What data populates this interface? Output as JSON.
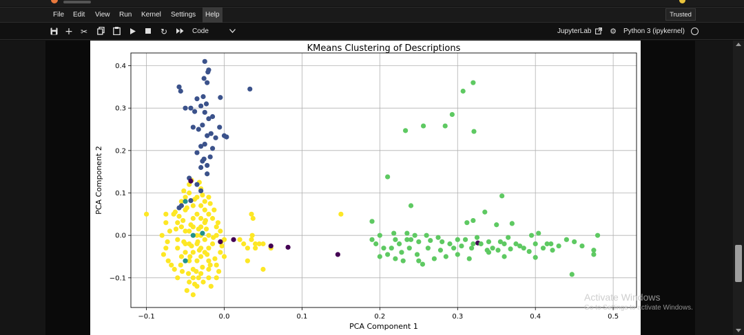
{
  "menubar": {
    "items": [
      "File",
      "Edit",
      "View",
      "Run",
      "Kernel",
      "Settings",
      "Help"
    ],
    "trusted": "Trusted"
  },
  "toolbar": {
    "cell_type": "Code",
    "jupyterlab": "JupyterLab",
    "kernel": "Python 3 (ipykernel)",
    "icons": [
      "save-icon",
      "add-cell-icon",
      "cut-icon",
      "copy-icon",
      "paste-icon",
      "run-icon",
      "stop-icon",
      "restart-icon",
      "fast-forward-icon",
      "chevron-down-icon",
      "external-link-icon",
      "gear-icon",
      "kernel-status-icon"
    ]
  },
  "watermark": {
    "line1": "Activate Windows",
    "line2": "Go to Settings to activate Windows."
  },
  "colors": {
    "cluster0": "#440154",
    "cluster1": "#3b528b",
    "cluster2": "#21918c",
    "cluster3": "#5ec962",
    "cluster4": "#fde725"
  },
  "chart_data": {
    "type": "scatter",
    "title": "KMeans Clustering of Descriptions",
    "xlabel": "PCA Component 1",
    "ylabel": "PCA Component 2",
    "xlim": [
      -0.12,
      0.53
    ],
    "ylim": [
      -0.17,
      0.43
    ],
    "xticks": [
      -0.1,
      0.0,
      0.1,
      0.2,
      0.3,
      0.4,
      0.5
    ],
    "xtick_labels": [
      "−0.1",
      "0.0",
      "0.1",
      "0.2",
      "0.3",
      "0.4",
      "0.5"
    ],
    "yticks": [
      -0.1,
      0.0,
      0.1,
      0.2,
      0.3,
      0.4
    ],
    "ytick_labels": [
      "−0.1",
      "0.0",
      "0.1",
      "0.2",
      "0.3",
      "0.4"
    ],
    "grid": true,
    "series": [
      {
        "color": "#fde725",
        "points": [
          [
            -0.03,
            0.0
          ],
          [
            -0.04,
            0.02
          ],
          [
            -0.02,
            0.05
          ],
          [
            -0.035,
            -0.02
          ],
          [
            -0.025,
            0.03
          ],
          [
            -0.045,
            0.01
          ],
          [
            -0.03,
            -0.05
          ],
          [
            -0.04,
            -0.08
          ],
          [
            -0.02,
            -0.03
          ],
          [
            -0.05,
            0.06
          ],
          [
            -0.035,
            0.09
          ],
          [
            -0.045,
            0.12
          ],
          [
            -0.03,
            0.11
          ],
          [
            -0.025,
            0.08
          ],
          [
            -0.04,
            -0.1
          ],
          [
            -0.035,
            -0.12
          ],
          [
            -0.03,
            -0.09
          ],
          [
            -0.05,
            -0.04
          ],
          [
            -0.055,
            0.02
          ],
          [
            -0.06,
            -0.01
          ],
          [
            -0.02,
            0.0
          ],
          [
            -0.015,
            -0.02
          ],
          [
            -0.01,
            0.02
          ],
          [
            -0.005,
            -0.04
          ],
          [
            -0.02,
            -0.06
          ],
          [
            -0.04,
            0.04
          ],
          [
            -0.045,
            -0.06
          ],
          [
            -0.03,
            0.07
          ],
          [
            -0.025,
            -0.01
          ],
          [
            -0.035,
            0.0
          ],
          [
            -0.05,
            -0.02
          ],
          [
            -0.04,
            0.0
          ],
          [
            -0.03,
            0.02
          ],
          [
            -0.02,
            -0.08
          ],
          [
            -0.045,
            -0.11
          ],
          [
            -0.04,
            -0.14
          ],
          [
            -0.048,
            -0.13
          ],
          [
            -0.038,
            -0.115
          ],
          [
            -0.02,
            -0.1
          ],
          [
            -0.01,
            -0.1
          ],
          [
            -0.06,
            0.03
          ],
          [
            -0.065,
            0.05
          ],
          [
            -0.07,
            0.01
          ],
          [
            -0.075,
            0.03
          ],
          [
            -0.075,
            -0.03
          ],
          [
            -0.08,
            0.0
          ],
          [
            -0.075,
            0.05
          ],
          [
            -0.068,
            -0.07
          ],
          [
            -0.06,
            -0.1
          ],
          [
            -0.06,
            -0.03
          ],
          [
            -0.055,
            -0.05
          ],
          [
            -0.05,
            0.09
          ],
          [
            -0.045,
            0.1
          ],
          [
            -0.04,
            0.07
          ],
          [
            -0.035,
            0.05
          ],
          [
            -0.025,
            0.06
          ],
          [
            -0.02,
            0.09
          ],
          [
            -0.015,
            0.04
          ],
          [
            -0.01,
            0.0
          ],
          [
            -0.005,
            0.01
          ],
          [
            0.0,
            -0.01
          ],
          [
            0.0,
            -0.05
          ],
          [
            -0.01,
            -0.07
          ],
          [
            -0.03,
            -0.03
          ],
          [
            -0.025,
            -0.04
          ],
          [
            -0.035,
            -0.06
          ],
          [
            -0.045,
            -0.02
          ],
          [
            -0.04,
            -0.04
          ],
          [
            -0.05,
            0.01
          ],
          [
            -0.03,
            0.04
          ],
          [
            0.035,
            0.05
          ],
          [
            0.037,
            0.04
          ],
          [
            0.036,
            0.0
          ],
          [
            0.03,
            -0.03
          ],
          [
            0.035,
            -0.01
          ],
          [
            0.04,
            -0.03
          ],
          [
            0.03,
            -0.06
          ],
          [
            0.04,
            -0.02
          ],
          [
            0.045,
            -0.02
          ],
          [
            0.025,
            -0.02
          ],
          [
            0.02,
            -0.01
          ],
          [
            0.05,
            -0.08
          ],
          [
            0.05,
            -0.02
          ],
          [
            0.06,
            -0.03
          ],
          [
            0.15,
            0.05
          ],
          [
            -0.1,
            0.05
          ],
          [
            -0.055,
            0.08
          ],
          [
            -0.052,
            0.105
          ],
          [
            -0.042,
            0.13
          ],
          [
            -0.032,
            0.125
          ],
          [
            -0.028,
            0.095
          ],
          [
            -0.038,
            0.085
          ],
          [
            -0.048,
            0.065
          ],
          [
            -0.058,
            0.045
          ],
          [
            -0.062,
            0.015
          ],
          [
            -0.052,
            -0.015
          ],
          [
            -0.042,
            -0.025
          ],
          [
            -0.032,
            -0.035
          ],
          [
            -0.022,
            -0.045
          ],
          [
            -0.012,
            -0.055
          ],
          [
            -0.018,
            -0.07
          ],
          [
            -0.028,
            -0.075
          ],
          [
            -0.036,
            -0.085
          ],
          [
            -0.046,
            -0.09
          ],
          [
            -0.054,
            -0.085
          ],
          [
            -0.033,
            -0.1
          ],
          [
            -0.027,
            -0.11
          ],
          [
            -0.017,
            -0.12
          ],
          [
            -0.007,
            -0.085
          ],
          [
            -0.003,
            -0.025
          ],
          [
            -0.008,
            0.03
          ],
          [
            -0.013,
            0.06
          ],
          [
            -0.018,
            0.075
          ],
          [
            -0.023,
            0.015
          ],
          [
            -0.033,
            0.015
          ],
          [
            -0.043,
            0.025
          ],
          [
            -0.053,
            0.035
          ],
          [
            -0.063,
            0.055
          ],
          [
            -0.073,
            -0.015
          ],
          [
            -0.078,
            -0.045
          ],
          [
            -0.072,
            -0.06
          ],
          [
            -0.064,
            -0.08
          ],
          [
            -0.056,
            -0.07
          ],
          [
            -0.044,
            -0.05
          ],
          [
            -0.034,
            -0.015
          ],
          [
            -0.024,
            0.035
          ],
          [
            -0.014,
            -0.005
          ],
          [
            -0.004,
            -0.015
          ]
        ]
      },
      {
        "color": "#3b528b",
        "points": [
          [
            -0.025,
            0.41
          ],
          [
            -0.02,
            0.39
          ],
          [
            -0.021,
            0.385
          ],
          [
            -0.022,
            0.36
          ],
          [
            -0.026,
            0.37
          ],
          [
            -0.058,
            0.35
          ],
          [
            -0.056,
            0.34
          ],
          [
            -0.035,
            0.322
          ],
          [
            -0.027,
            0.327
          ],
          [
            -0.023,
            0.31
          ],
          [
            -0.043,
            0.3
          ],
          [
            -0.025,
            0.29
          ],
          [
            -0.03,
            0.305
          ],
          [
            -0.005,
            0.325
          ],
          [
            -0.038,
            0.292
          ],
          [
            -0.05,
            0.3
          ],
          [
            -0.02,
            0.275
          ],
          [
            -0.015,
            0.28
          ],
          [
            -0.04,
            0.255
          ],
          [
            -0.033,
            0.25
          ],
          [
            -0.028,
            0.26
          ],
          [
            -0.022,
            0.235
          ],
          [
            -0.017,
            0.24
          ],
          [
            -0.011,
            0.23
          ],
          [
            -0.03,
            0.21
          ],
          [
            -0.025,
            0.215
          ],
          [
            -0.035,
            0.195
          ],
          [
            -0.028,
            0.175
          ],
          [
            -0.022,
            0.165
          ],
          [
            -0.026,
            0.18
          ],
          [
            -0.018,
            0.185
          ],
          [
            -0.015,
            0.205
          ],
          [
            0.0,
            0.235
          ],
          [
            0.003,
            0.232
          ],
          [
            0.033,
            0.345
          ],
          [
            -0.006,
            0.255
          ],
          [
            -0.03,
            0.16
          ],
          [
            -0.022,
            0.145
          ],
          [
            -0.035,
            0.12
          ],
          [
            -0.045,
            0.135
          ],
          [
            -0.03,
            0.105
          ],
          [
            -0.055,
            0.07
          ],
          [
            -0.058,
            0.065
          ],
          [
            -0.043,
            0.082
          ]
        ]
      },
      {
        "color": "#21918c",
        "points": [
          [
            -0.05,
            0.08
          ],
          [
            -0.04,
            0.0
          ],
          [
            -0.05,
            -0.06
          ],
          [
            -0.028,
            0.005
          ]
        ]
      },
      {
        "color": "#440154",
        "points": [
          [
            -0.005,
            -0.015
          ],
          [
            0.012,
            -0.01
          ],
          [
            0.06,
            -0.025
          ],
          [
            0.082,
            -0.028
          ],
          [
            0.146,
            -0.045
          ],
          [
            0.326,
            -0.018
          ],
          [
            -0.043,
            0.128
          ]
        ]
      },
      {
        "color": "#5ec962",
        "points": [
          [
            0.32,
            0.36
          ],
          [
            0.307,
            0.34
          ],
          [
            0.293,
            0.285
          ],
          [
            0.256,
            0.258
          ],
          [
            0.284,
            0.258
          ],
          [
            0.321,
            0.245
          ],
          [
            0.233,
            0.247
          ],
          [
            0.21,
            0.138
          ],
          [
            0.357,
            0.093
          ],
          [
            0.24,
            0.07
          ],
          [
            0.335,
            0.055
          ],
          [
            0.19,
            0.033
          ],
          [
            0.32,
            0.035
          ],
          [
            0.35,
            0.025
          ],
          [
            0.37,
            0.028
          ],
          [
            0.312,
            0.03
          ],
          [
            0.404,
            0.005
          ],
          [
            0.395,
            0.0
          ],
          [
            0.48,
            0.0
          ],
          [
            0.19,
            -0.01
          ],
          [
            0.2,
            0.0
          ],
          [
            0.22,
            -0.01
          ],
          [
            0.24,
            -0.01
          ],
          [
            0.26,
            0.0
          ],
          [
            0.28,
            -0.015
          ],
          [
            0.3,
            -0.01
          ],
          [
            0.32,
            -0.02
          ],
          [
            0.34,
            -0.015
          ],
          [
            0.36,
            -0.02
          ],
          [
            0.38,
            -0.025
          ],
          [
            0.4,
            -0.02
          ],
          [
            0.42,
            -0.02
          ],
          [
            0.44,
            -0.01
          ],
          [
            0.46,
            -0.025
          ],
          [
            0.475,
            -0.035
          ],
          [
            0.475,
            -0.045
          ],
          [
            0.55,
            -0.035
          ],
          [
            0.447,
            -0.092
          ],
          [
            0.25,
            -0.06
          ],
          [
            0.255,
            -0.068
          ],
          [
            0.27,
            -0.055
          ],
          [
            0.285,
            -0.05
          ],
          [
            0.3,
            -0.045
          ],
          [
            0.315,
            -0.055
          ],
          [
            0.34,
            -0.04
          ],
          [
            0.36,
            -0.05
          ],
          [
            0.4,
            -0.052
          ],
          [
            0.21,
            -0.045
          ],
          [
            0.22,
            -0.055
          ],
          [
            0.23,
            -0.06
          ],
          [
            0.2,
            -0.05
          ],
          [
            0.215,
            -0.03
          ],
          [
            0.225,
            -0.02
          ],
          [
            0.235,
            -0.01
          ],
          [
            0.245,
            0.0
          ],
          [
            0.235,
            0.005
          ],
          [
            0.25,
            -0.015
          ],
          [
            0.265,
            -0.012
          ],
          [
            0.275,
            -0.005
          ],
          [
            0.29,
            -0.02
          ],
          [
            0.305,
            -0.025
          ],
          [
            0.31,
            -0.01
          ],
          [
            0.325,
            -0.005
          ],
          [
            0.33,
            -0.02
          ],
          [
            0.345,
            -0.03
          ],
          [
            0.355,
            -0.015
          ],
          [
            0.365,
            -0.005
          ],
          [
            0.375,
            -0.02
          ],
          [
            0.385,
            -0.03
          ],
          [
            0.41,
            -0.03
          ],
          [
            0.415,
            -0.02
          ],
          [
            0.43,
            -0.025
          ],
          [
            0.45,
            -0.015
          ],
          [
            0.195,
            -0.02
          ],
          [
            0.205,
            -0.03
          ],
          [
            0.218,
            0.005
          ],
          [
            0.228,
            -0.04
          ],
          [
            0.238,
            -0.03
          ],
          [
            0.248,
            -0.045
          ],
          [
            0.262,
            -0.03
          ],
          [
            0.278,
            -0.035
          ],
          [
            0.295,
            -0.03
          ],
          [
            0.318,
            -0.03
          ],
          [
            0.338,
            -0.035
          ],
          [
            0.352,
            -0.035
          ],
          [
            0.368,
            -0.032
          ],
          [
            0.392,
            -0.038
          ],
          [
            0.422,
            -0.035
          ]
        ]
      }
    ]
  }
}
